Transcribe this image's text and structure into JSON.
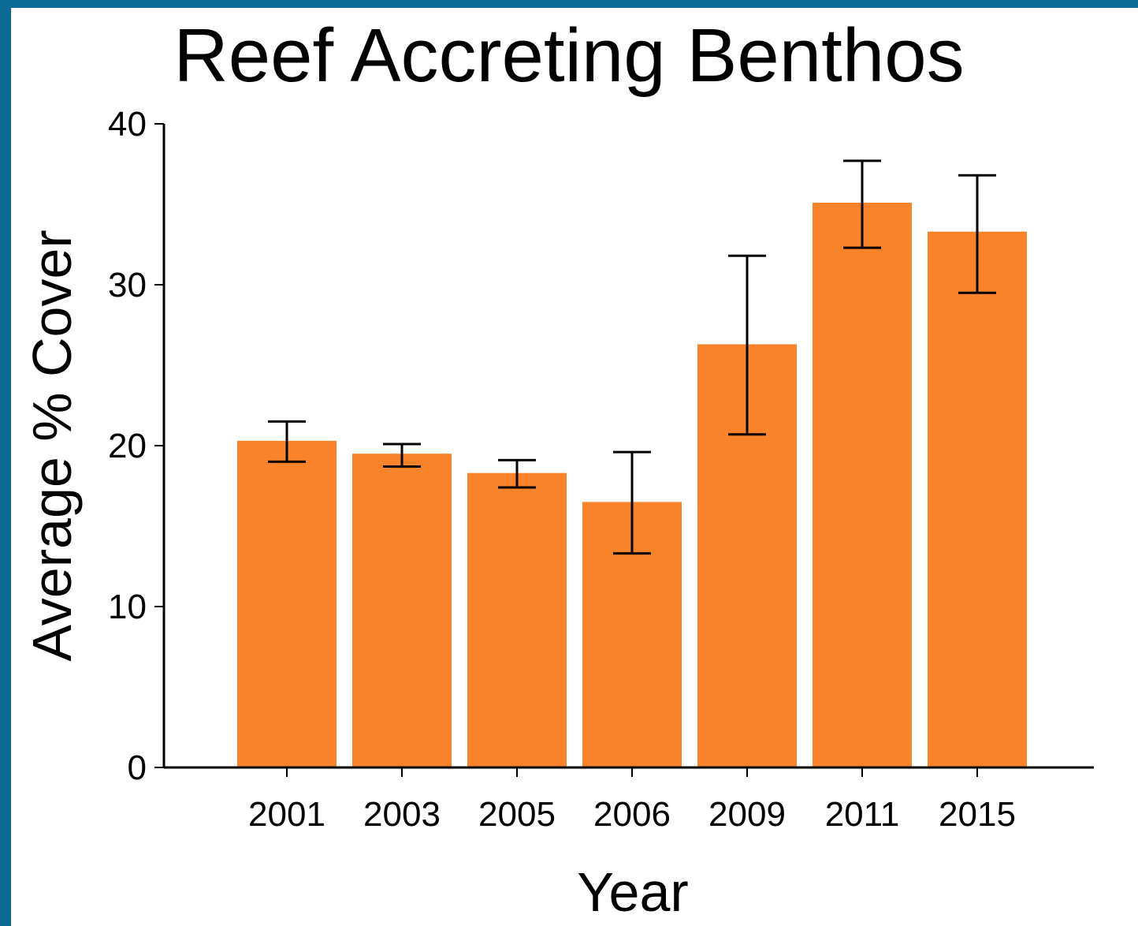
{
  "chart_data": {
    "type": "bar",
    "title": "Reef Accreting Benthos",
    "xlabel": "Year",
    "ylabel": "Average % Cover",
    "categories": [
      "2001",
      "2003",
      "2005",
      "2006",
      "2009",
      "2011",
      "2015"
    ],
    "values": [
      20.3,
      19.5,
      18.3,
      16.5,
      26.3,
      35.1,
      33.3
    ],
    "error_low": [
      19.0,
      18.7,
      17.4,
      13.3,
      20.7,
      32.3,
      29.5
    ],
    "error_high": [
      21.5,
      20.1,
      19.1,
      19.6,
      31.8,
      37.7,
      36.8
    ],
    "ylim": [
      0,
      40
    ],
    "yticks": [
      0,
      10,
      20,
      30,
      40
    ],
    "grid": false,
    "legend": "none",
    "bar_color": "#f8832a",
    "background_color": "#ffffff",
    "frame_color": "#0b6b94"
  }
}
